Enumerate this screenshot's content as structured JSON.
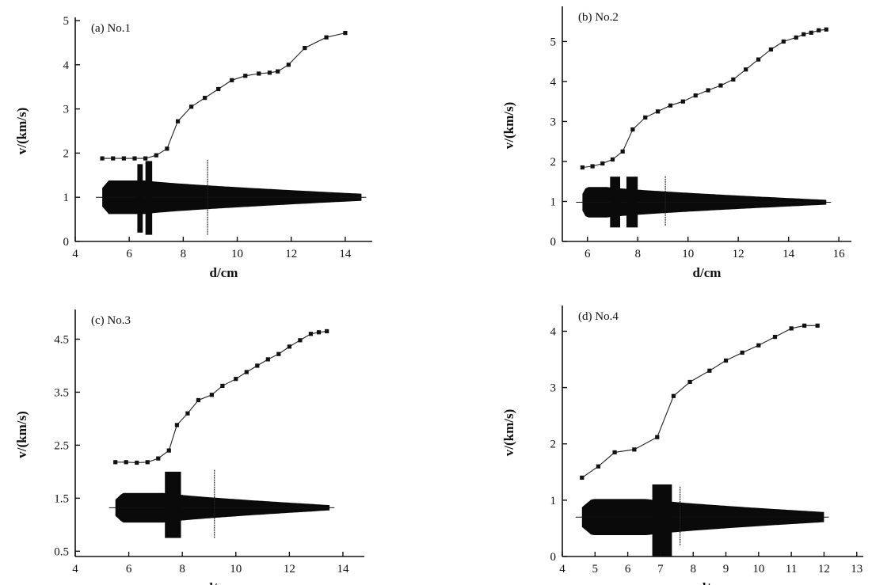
{
  "chart_data": [
    {
      "type": "line",
      "title": "(a) No.1",
      "xlabel": "d/cm",
      "ylabel": "v/(km/s)",
      "xlim": [
        4,
        15
      ],
      "ylim": [
        0,
        5
      ],
      "xticks": [
        4,
        6,
        8,
        10,
        12,
        14
      ],
      "yticks": [
        0,
        1,
        2,
        3,
        4,
        5
      ],
      "series": [
        {
          "x": [
            5.0,
            5.4,
            5.8,
            6.2,
            6.6,
            7.0,
            7.4,
            7.8,
            8.3,
            8.8,
            9.3,
            9.8,
            10.3,
            10.8,
            11.2,
            11.5,
            11.9,
            12.5,
            13.3,
            14.0
          ],
          "y": [
            1.88,
            1.88,
            1.88,
            1.88,
            1.88,
            1.95,
            2.1,
            2.72,
            3.05,
            3.25,
            3.45,
            3.65,
            3.75,
            3.8,
            3.82,
            3.85,
            4.0,
            4.38,
            4.62,
            4.72
          ]
        }
      ],
      "waveform": {
        "center": 1.0,
        "x_start": 5.0,
        "x_end": 14.6,
        "thick_half": 0.38,
        "thick_until": 6.6,
        "thin_half": 0.08,
        "bursts": [
          {
            "x0": 6.3,
            "x1": 6.5,
            "ymin": 0.2,
            "ymax": 1.75
          },
          {
            "x0": 6.6,
            "x1": 6.85,
            "ymin": 0.15,
            "ymax": 1.82
          }
        ],
        "marker": {
          "x": 8.9,
          "ymin": 0.15,
          "ymax": 1.85
        }
      }
    },
    {
      "type": "line",
      "title": "(b) No.2",
      "xlabel": "d/cm",
      "ylabel": "v/(km/s)",
      "xlim": [
        5,
        16.5
      ],
      "ylim": [
        0,
        5.8
      ],
      "xticks": [
        6,
        8,
        10,
        12,
        14,
        16
      ],
      "yticks": [
        0,
        1,
        2,
        3,
        4,
        5
      ],
      "series": [
        {
          "x": [
            5.8,
            6.2,
            6.6,
            7.0,
            7.4,
            7.8,
            8.3,
            8.8,
            9.3,
            9.8,
            10.3,
            10.8,
            11.3,
            11.8,
            12.3,
            12.8,
            13.3,
            13.8,
            14.3,
            14.6,
            14.9,
            15.2,
            15.5
          ],
          "y": [
            1.85,
            1.88,
            1.95,
            2.05,
            2.25,
            2.8,
            3.1,
            3.25,
            3.4,
            3.5,
            3.65,
            3.78,
            3.9,
            4.05,
            4.3,
            4.55,
            4.8,
            5.0,
            5.1,
            5.18,
            5.22,
            5.28,
            5.3
          ]
        }
      ],
      "waveform": {
        "center": 0.98,
        "x_start": 5.8,
        "x_end": 15.5,
        "thick_half": 0.38,
        "thick_until": 6.8,
        "thin_half": 0.06,
        "bursts": [
          {
            "x0": 6.9,
            "x1": 7.3,
            "ymin": 0.35,
            "ymax": 1.62
          },
          {
            "x0": 7.55,
            "x1": 8.0,
            "ymin": 0.35,
            "ymax": 1.62
          }
        ],
        "marker": {
          "x": 9.1,
          "ymin": 0.4,
          "ymax": 1.65
        }
      }
    },
    {
      "type": "line",
      "title": "(c) No.3",
      "xlabel": "d/cm",
      "ylabel": "v/(km/s)",
      "xlim": [
        4,
        14.8
      ],
      "ylim": [
        0.4,
        5.0
      ],
      "xticks": [
        4,
        6,
        8,
        10,
        12,
        14
      ],
      "yticks": [
        0.5,
        1.5,
        2.5,
        3.5,
        4.5
      ],
      "series": [
        {
          "x": [
            5.5,
            5.9,
            6.3,
            6.7,
            7.1,
            7.5,
            7.8,
            8.2,
            8.6,
            9.1,
            9.5,
            10.0,
            10.4,
            10.8,
            11.2,
            11.6,
            12.0,
            12.4,
            12.8,
            13.1,
            13.4
          ],
          "y": [
            2.18,
            2.18,
            2.17,
            2.18,
            2.25,
            2.4,
            2.88,
            3.1,
            3.35,
            3.45,
            3.62,
            3.75,
            3.88,
            4.0,
            4.12,
            4.22,
            4.36,
            4.48,
            4.6,
            4.63,
            4.65
          ]
        }
      ],
      "waveform": {
        "center": 1.32,
        "x_start": 5.5,
        "x_end": 13.5,
        "thick_half": 0.28,
        "thick_until": 7.3,
        "thin_half": 0.05,
        "bursts": [
          {
            "x0": 7.35,
            "x1": 7.95,
            "ymin": 0.75,
            "ymax": 2.0
          }
        ],
        "marker": {
          "x": 9.2,
          "ymin": 0.75,
          "ymax": 2.05
        }
      }
    },
    {
      "type": "line",
      "title": "(d) No.4",
      "xlabel": "d/cm",
      "ylabel": "v/(km/s)",
      "xlim": [
        4,
        13.2
      ],
      "ylim": [
        0,
        4.4
      ],
      "xticks": [
        4,
        5,
        6,
        7,
        8,
        9,
        10,
        11,
        12,
        13
      ],
      "yticks": [
        0,
        1,
        2,
        3,
        4
      ],
      "series": [
        {
          "x": [
            4.6,
            5.1,
            5.6,
            6.2,
            6.9,
            7.4,
            7.9,
            8.5,
            9.0,
            9.5,
            10.0,
            10.5,
            11.0,
            11.4,
            11.8
          ],
          "y": [
            1.4,
            1.6,
            1.85,
            1.9,
            2.12,
            2.85,
            3.1,
            3.3,
            3.48,
            3.62,
            3.75,
            3.9,
            4.05,
            4.1,
            4.1
          ]
        }
      ],
      "waveform": {
        "center": 0.7,
        "x_start": 4.6,
        "x_end": 12.0,
        "thick_half": 0.32,
        "thick_until": 6.6,
        "thin_half": 0.09,
        "bursts": [
          {
            "x0": 6.75,
            "x1": 7.35,
            "ymin": 0.0,
            "ymax": 1.28
          }
        ],
        "marker": {
          "x": 7.6,
          "ymin": 0.2,
          "ymax": 1.25
        }
      }
    }
  ]
}
